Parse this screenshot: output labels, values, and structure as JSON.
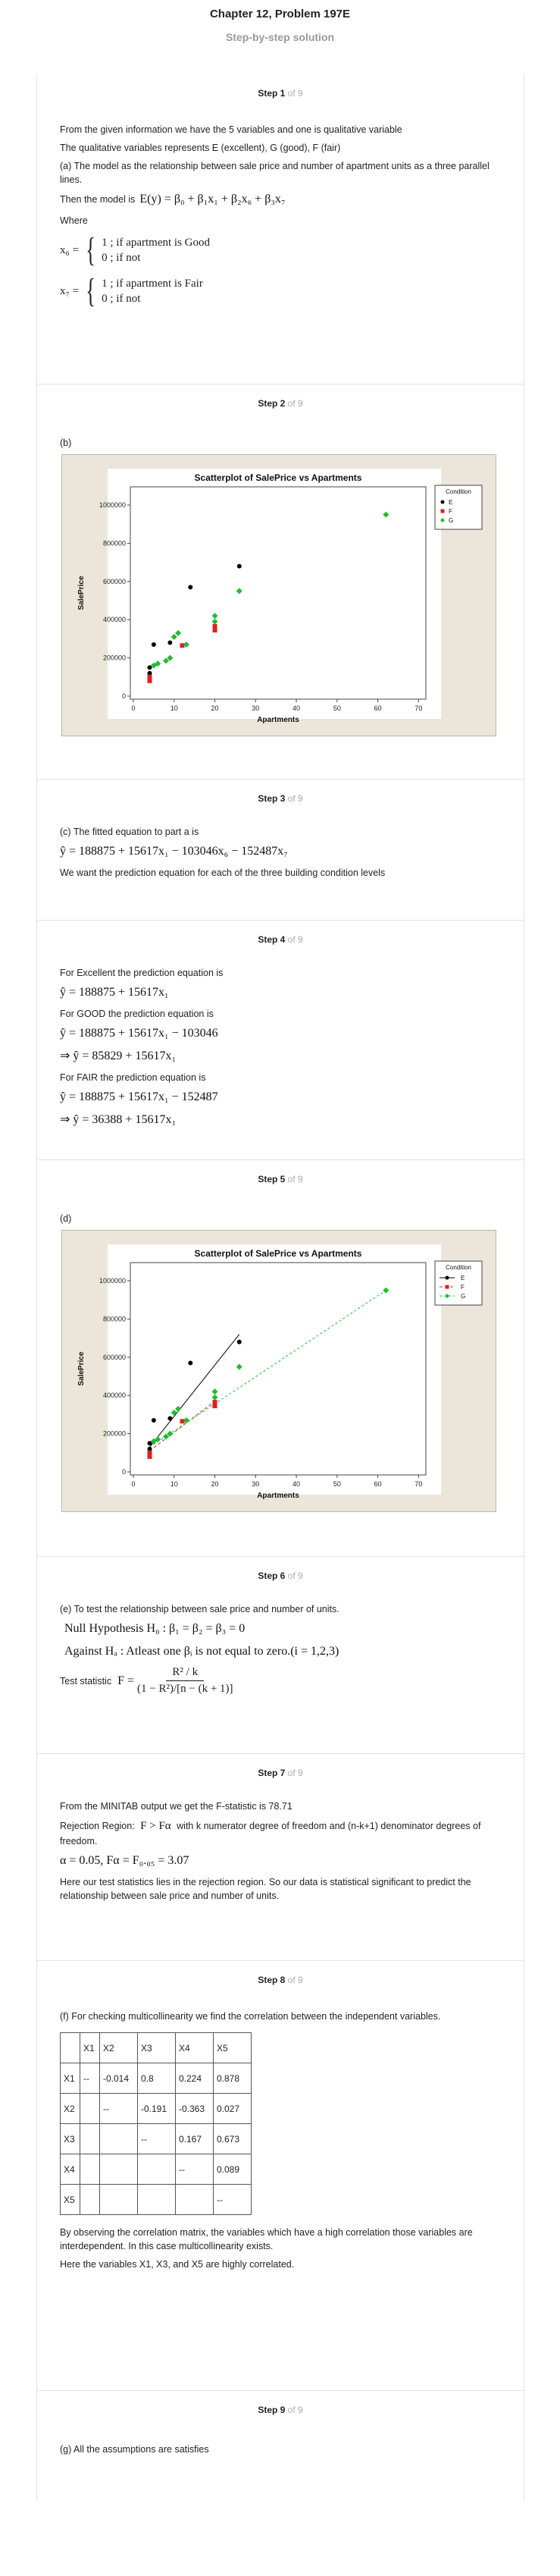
{
  "header": {
    "title": "Chapter 12, Problem 197E",
    "subtitle": "Step-by-step solution"
  },
  "step_total": "of 9",
  "steps": {
    "s1": {
      "label": "Step 1",
      "p1": "From the given information we have the 5 variables and one is qualitative variable",
      "p2": "The qualitative variables represents E (excellent), G (good), F (fair)",
      "p3": "(a) The model as the relationship between sale price and number of apartment units as a three parallel lines.",
      "p4": "Then the model is",
      "model": "E(y) = β₀ + β₁x₁ + β₂x₆ + β₃x₇",
      "where": "Where",
      "x6_lhs": "x₆ =",
      "x6_a": "1 ; if apartment is Good",
      "x6_b": "0 ; if not",
      "x7_lhs": "x₇ =",
      "x7_a": "1 ; if apartment is Fair",
      "x7_b": "0 ; if not"
    },
    "s2": {
      "label": "Step 2",
      "part": "(b)"
    },
    "s3": {
      "label": "Step 3",
      "p1": "(c) The fitted equation to part a is",
      "eq": "ŷ = 188875 + 15617x₁ − 103046x₆ − 152487x₇",
      "p2": "We want the prediction equation for each of the three building condition levels"
    },
    "s4": {
      "label": "Step 4",
      "p1": "For Excellent the prediction equation is",
      "eq1": "ŷ = 188875 + 15617x₁",
      "p2": "For GOOD the prediction equation is",
      "eq2": "ŷ = 188875 + 15617x₁ − 103046",
      "eq3": "⇒ ŷ = 85829 + 15617x₁",
      "p3": "For FAIR the prediction equation is",
      "eq4": "ŷ = 188875 + 15617x₁ − 152487",
      "eq5": "⇒ ŷ = 36388 + 15617x₁"
    },
    "s5": {
      "label": "Step 5",
      "part": "(d)"
    },
    "s6": {
      "label": "Step 6",
      "p1": "(e) To test the relationship between sale price and number of units.",
      "h0": "Null Hypothesis H₀ : β₁ = β₂ = β₃ = 0",
      "ha": "Against   Hₐ : Atleast one βᵢ is not equal to zero.(i = 1,2,3)",
      "ts": "Test statistic",
      "f_lhs": "F =",
      "f_num": "R² / k",
      "f_den": "(1 − R²)/[n − (k + 1)]"
    },
    "s7": {
      "label": "Step 7",
      "p1": "From the MINITAB output we get the F-statistic is 78.71",
      "p2a": "Rejection Region:",
      "p2m": "F > Fα",
      "p2b": "with k numerator degree of freedom and (n-k+1) denominator degrees of freedom.",
      "eq": "α = 0.05, Fα = F₀.₀₅ = 3.07",
      "p3": "Here our test statistics lies in the rejection region. So our data is statistical significant to predict the relationship between sale price and number of units."
    },
    "s8": {
      "label": "Step 8",
      "p1": "(f) For checking multicollinearity we find the correlation between the independent variables.",
      "table": [
        [
          "",
          "X1",
          "X2",
          "X3",
          "X4",
          "X5"
        ],
        [
          "X1",
          "--",
          "-0.014",
          "0.8",
          "0.224",
          "0.878"
        ],
        [
          "X2",
          "",
          "--",
          "-0.191",
          "-0.363",
          "0.027"
        ],
        [
          "X3",
          "",
          "",
          "--",
          "0.167",
          "0.673"
        ],
        [
          "X4",
          "",
          "",
          "",
          "--",
          "0.089"
        ],
        [
          "X5",
          "",
          "",
          "",
          "",
          "--"
        ]
      ],
      "p2": "By observing the correlation matrix, the variables which have a high correlation those variables are interdependent. In this case multicollinearity exists.",
      "p3": "Here the variables X1, X3, and X5 are highly correlated."
    },
    "s9": {
      "label": "Step 9",
      "p1": "(g) All the assumptions are satisfies"
    }
  },
  "chart_data": [
    {
      "type": "scatter",
      "title": "Scatterplot of SalePrice vs Apartments",
      "xlabel": "Apartments",
      "ylabel": "SalePrice",
      "xlim": [
        0,
        70
      ],
      "ylim": [
        0,
        1000000
      ],
      "xticks": [
        "0",
        "10",
        "20",
        "30",
        "40",
        "50",
        "60",
        "70"
      ],
      "yticks": [
        "0",
        "200000",
        "400000",
        "600000",
        "800000",
        "1000000"
      ],
      "legend_title": "Condition",
      "legend_position": "top-right",
      "fit_lines": false,
      "series": [
        {
          "name": "E",
          "color": "#000000",
          "marker": "circle",
          "points": [
            [
              4,
              150000
            ],
            [
              4,
              120000
            ],
            [
              5,
              270000
            ],
            [
              9,
              280000
            ],
            [
              14,
              570000
            ],
            [
              26,
              680000
            ]
          ]
        },
        {
          "name": "F",
          "color": "#e02020",
          "marker": "square",
          "points": [
            [
              4,
              80000
            ],
            [
              4,
              100000
            ],
            [
              12,
              265000
            ],
            [
              20,
              345000
            ],
            [
              20,
              365000
            ]
          ]
        },
        {
          "name": "G",
          "color": "#22bb33",
          "marker": "diamond",
          "points": [
            [
              5,
              160000
            ],
            [
              6,
              170000
            ],
            [
              8,
              185000
            ],
            [
              9,
              200000
            ],
            [
              10,
              310000
            ],
            [
              11,
              330000
            ],
            [
              13,
              270000
            ],
            [
              20,
              390000
            ],
            [
              20,
              420000
            ],
            [
              26,
              550000
            ],
            [
              62,
              950000
            ]
          ]
        }
      ]
    },
    {
      "type": "scatter",
      "title": "Scatterplot of SalePrice vs Apartments",
      "xlabel": "Apartments",
      "ylabel": "SalePrice",
      "xlim": [
        0,
        70
      ],
      "ylim": [
        0,
        1000000
      ],
      "xticks": [
        "0",
        "10",
        "20",
        "30",
        "40",
        "50",
        "60",
        "70"
      ],
      "yticks": [
        "0",
        "200000",
        "400000",
        "600000",
        "800000",
        "1000000"
      ],
      "legend_title": "Condition",
      "legend_position": "top-right",
      "fit_lines": true,
      "series": [
        {
          "name": "E",
          "color": "#000000",
          "marker": "circle",
          "dash": "",
          "points": [
            [
              4,
              150000
            ],
            [
              4,
              120000
            ],
            [
              5,
              270000
            ],
            [
              9,
              280000
            ],
            [
              14,
              570000
            ],
            [
              26,
              680000
            ]
          ],
          "line": [
            [
              4,
              130000
            ],
            [
              26,
              720000
            ]
          ]
        },
        {
          "name": "F",
          "color": "#e02020",
          "marker": "square",
          "dash": "4,3",
          "points": [
            [
              4,
              80000
            ],
            [
              4,
              100000
            ],
            [
              12,
              265000
            ],
            [
              20,
              345000
            ],
            [
              20,
              365000
            ]
          ],
          "line": [
            [
              4,
              110000
            ],
            [
              20,
              370000
            ]
          ]
        },
        {
          "name": "G",
          "color": "#22bb33",
          "marker": "diamond",
          "dash": "3,3",
          "points": [
            [
              5,
              160000
            ],
            [
              6,
              170000
            ],
            [
              8,
              185000
            ],
            [
              9,
              200000
            ],
            [
              10,
              310000
            ],
            [
              11,
              330000
            ],
            [
              13,
              270000
            ],
            [
              20,
              390000
            ],
            [
              20,
              420000
            ],
            [
              26,
              550000
            ],
            [
              62,
              950000
            ]
          ],
          "line": [
            [
              4,
              130000
            ],
            [
              62,
              950000
            ]
          ]
        }
      ]
    }
  ]
}
